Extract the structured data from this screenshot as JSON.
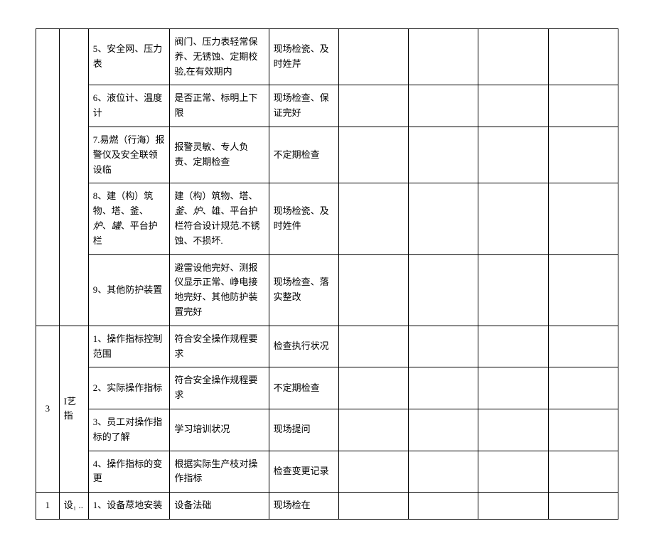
{
  "rows": [
    {
      "c1": "",
      "c2": "",
      "c3": "5、安全网、压力表",
      "c4": "阀门、压力表轻常保养、无锈蚀、定期校验,在有效期内",
      "c5": "现场检瓷、及时姓芹",
      "c6": "",
      "c7": "",
      "c8": "",
      "c9": ""
    },
    {
      "c3": "6、液位计、温度计",
      "c4": "是否正常、标明上下限",
      "c5": "现场检查、保证完好",
      "c6": "",
      "c7": "",
      "c8": "",
      "c9": ""
    },
    {
      "c3": "7.易燃（行海）报警仪及安全联领设临",
      "c4": "报警灵敏、专人负责、定期检查",
      "c5": "不定期检查",
      "c6": "",
      "c7": "",
      "c8": "",
      "c9": ""
    },
    {
      "c3_html": "8、建（构）筑物、塔、釜、<span class='italic'>炉</span>、<span class='italic'>罐</span>、平台护栏",
      "c4_html": "建（构）筑物、塔、<span class='italic'>釜</span>、<span class='italic'>炉</span>、雄、平台护栏符合设计规范.不锈蚀、不损坏.",
      "c5": "现场检瓷、及时姓件",
      "c6": "",
      "c7": "",
      "c8": "",
      "c9": ""
    },
    {
      "c3": "9、其他防护装置",
      "c4": "避雷设他完好、测报仪显示正常、峥电接地完好、其他防护装置完好",
      "c5": "现场检查、落实整改",
      "c6": "",
      "c7": "",
      "c8": "",
      "c9": ""
    },
    {
      "c1": "3",
      "c2": "I艺指",
      "c3": "1、操作指标控制范围",
      "c4": "符合安全操作规程要求",
      "c5": "检查执行状况",
      "c6": "",
      "c7": "",
      "c8": "",
      "c9": ""
    },
    {
      "c3": "2、实际操作指标",
      "c4": "符合安全操作规程要求",
      "c5": "不定期检查",
      "c6": "",
      "c7": "",
      "c8": "",
      "c9": ""
    },
    {
      "c3": "3、员工对操作指标的了解",
      "c4": "学习培训状况",
      "c5": "现场提问",
      "c6": "",
      "c7": "",
      "c8": "",
      "c9": ""
    },
    {
      "c3": "4、操作指标的变更",
      "c4": "根据实际生产枝对操作指标",
      "c5": "检查变更记录",
      "c6": "",
      "c7": "",
      "c8": "",
      "c9": ""
    },
    {
      "c1": "1",
      "c2": "设₁ ..",
      "c3": "1、设备荩地安装",
      "c4": "设备法础",
      "c5": "现场检在",
      "c6": "",
      "c7": "",
      "c8": "",
      "c9": ""
    }
  ]
}
